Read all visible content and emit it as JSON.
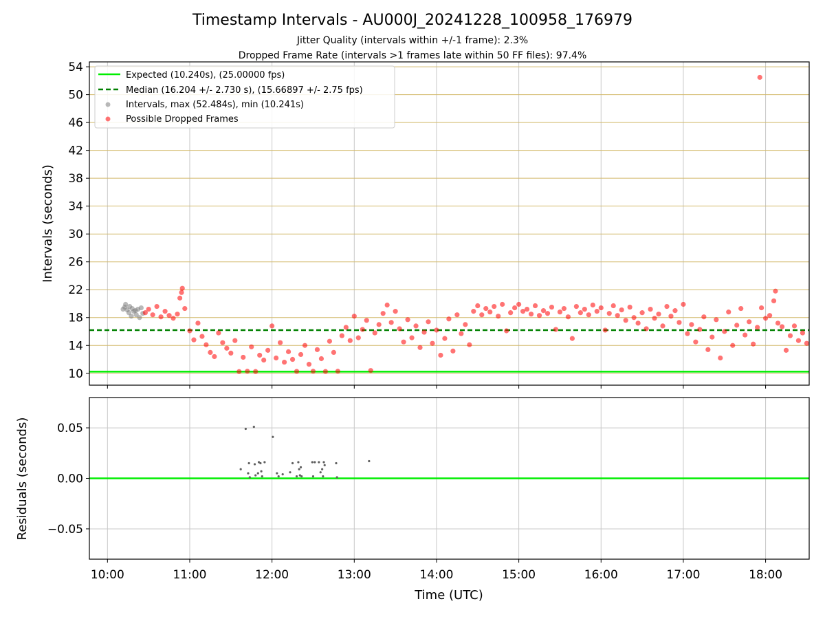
{
  "figure": {
    "title": "Timestamp Intervals - AU000J_20241228_100958_176979",
    "subtitle_line1": "Jitter Quality (intervals within +/-1 frame): 2.3%",
    "subtitle_line2": "Dropped Frame Rate (intervals >1 frames late within 50 FF files): 97.4%"
  },
  "colors": {
    "expected": "#00ee00",
    "median": "#008000",
    "intervals": "#808080",
    "dropped": "#ff0000",
    "hgrid_top": "#d2b96a",
    "grid": "#c8c8c8"
  },
  "chart_data": [
    {
      "type": "scatter",
      "xlabel": "",
      "ylabel": "Intervals (seconds)",
      "x_unit": "hours UTC",
      "xlim": [
        9.78,
        18.53
      ],
      "ylim": [
        8.3,
        54.7
      ],
      "yticks": [
        10,
        14,
        18,
        22,
        26,
        30,
        34,
        38,
        42,
        46,
        50,
        54
      ],
      "grid": "on",
      "legend_position": "upper-left",
      "legend": [
        {
          "label": "Expected (10.240s), (25.00000 fps)",
          "style": "solid-line",
          "color": "#00ee00"
        },
        {
          "label": "Median (16.204 +/- 2.730 s), (15.66897 +/- 2.75 fps)",
          "style": "dashed-line",
          "color": "#008000"
        },
        {
          "label": "Intervals, max (52.484s), min (10.241s)",
          "style": "dot",
          "color": "#808080"
        },
        {
          "label": "Possible Dropped Frames",
          "style": "dot",
          "color": "#ff0000"
        }
      ],
      "reference_lines": {
        "expected": 10.24,
        "median": 16.204
      },
      "series": [
        {
          "name": "Intervals, max (52.484s), min (10.241s)",
          "color": "#808080",
          "points": [
            [
              10.19,
              19.2
            ],
            [
              10.21,
              19.5
            ],
            [
              10.22,
              19.9
            ],
            [
              10.24,
              19.1
            ],
            [
              10.26,
              18.7
            ],
            [
              10.27,
              19.6
            ],
            [
              10.29,
              18.2
            ],
            [
              10.3,
              19.3
            ],
            [
              10.32,
              18.9
            ],
            [
              10.34,
              19.0
            ],
            [
              10.35,
              18.4
            ],
            [
              10.37,
              19.2
            ],
            [
              10.39,
              18.0
            ],
            [
              10.41,
              19.4
            ],
            [
              10.43,
              18.6
            ]
          ]
        },
        {
          "name": "Possible Dropped Frames",
          "color": "#ff0000",
          "points": [
            [
              10.46,
              18.7
            ],
            [
              10.5,
              19.2
            ],
            [
              10.55,
              18.4
            ],
            [
              10.6,
              19.6
            ],
            [
              10.65,
              18.1
            ],
            [
              10.7,
              18.9
            ],
            [
              10.75,
              18.3
            ],
            [
              10.8,
              17.9
            ],
            [
              10.85,
              18.5
            ],
            [
              10.88,
              20.8
            ],
            [
              10.9,
              21.6
            ],
            [
              10.91,
              22.2
            ],
            [
              10.94,
              19.3
            ],
            [
              11.0,
              16.1
            ],
            [
              11.05,
              14.8
            ],
            [
              11.1,
              17.2
            ],
            [
              11.15,
              15.3
            ],
            [
              11.2,
              14.1
            ],
            [
              11.25,
              13.0
            ],
            [
              11.3,
              12.4
            ],
            [
              11.35,
              15.8
            ],
            [
              11.4,
              14.4
            ],
            [
              11.45,
              13.6
            ],
            [
              11.5,
              12.9
            ],
            [
              11.55,
              14.7
            ],
            [
              11.6,
              10.25
            ],
            [
              11.65,
              12.3
            ],
            [
              11.7,
              10.3
            ],
            [
              11.75,
              13.8
            ],
            [
              11.8,
              10.26
            ],
            [
              11.85,
              12.6
            ],
            [
              11.9,
              11.9
            ],
            [
              11.95,
              13.3
            ],
            [
              12.0,
              16.8
            ],
            [
              12.05,
              12.2
            ],
            [
              12.1,
              14.4
            ],
            [
              12.15,
              11.6
            ],
            [
              12.2,
              13.1
            ],
            [
              12.25,
              12.0
            ],
            [
              12.3,
              10.28
            ],
            [
              12.35,
              12.7
            ],
            [
              12.4,
              14.0
            ],
            [
              12.45,
              11.3
            ],
            [
              12.5,
              10.3
            ],
            [
              12.55,
              13.4
            ],
            [
              12.6,
              12.1
            ],
            [
              12.65,
              10.27
            ],
            [
              12.7,
              14.6
            ],
            [
              12.75,
              13.0
            ],
            [
              12.8,
              10.3
            ],
            [
              12.85,
              15.4
            ],
            [
              12.9,
              16.6
            ],
            [
              12.95,
              14.7
            ],
            [
              13.0,
              18.2
            ],
            [
              13.05,
              15.1
            ],
            [
              13.1,
              16.3
            ],
            [
              13.15,
              17.6
            ],
            [
              13.2,
              10.4
            ],
            [
              13.25,
              15.8
            ],
            [
              13.3,
              17.0
            ],
            [
              13.35,
              18.6
            ],
            [
              13.4,
              19.8
            ],
            [
              13.45,
              17.3
            ],
            [
              13.5,
              18.9
            ],
            [
              13.55,
              16.4
            ],
            [
              13.6,
              14.5
            ],
            [
              13.65,
              17.7
            ],
            [
              13.7,
              15.1
            ],
            [
              13.75,
              16.8
            ],
            [
              13.8,
              13.7
            ],
            [
              13.85,
              15.9
            ],
            [
              13.9,
              17.4
            ],
            [
              13.95,
              14.3
            ],
            [
              14.0,
              16.2
            ],
            [
              14.05,
              12.6
            ],
            [
              14.1,
              15.0
            ],
            [
              14.15,
              17.8
            ],
            [
              14.2,
              13.2
            ],
            [
              14.25,
              18.4
            ],
            [
              14.3,
              15.7
            ],
            [
              14.35,
              17.0
            ],
            [
              14.4,
              14.1
            ],
            [
              14.45,
              18.9
            ],
            [
              14.5,
              19.7
            ],
            [
              14.55,
              18.4
            ],
            [
              14.6,
              19.3
            ],
            [
              14.65,
              18.8
            ],
            [
              14.7,
              19.6
            ],
            [
              14.75,
              18.2
            ],
            [
              14.8,
              19.9
            ],
            [
              14.85,
              16.1
            ],
            [
              14.9,
              18.7
            ],
            [
              14.95,
              19.4
            ],
            [
              15.0,
              19.9
            ],
            [
              15.05,
              18.9
            ],
            [
              15.1,
              19.2
            ],
            [
              15.15,
              18.5
            ],
            [
              15.2,
              19.7
            ],
            [
              15.25,
              18.3
            ],
            [
              15.3,
              19.0
            ],
            [
              15.35,
              18.6
            ],
            [
              15.4,
              19.5
            ],
            [
              15.45,
              16.3
            ],
            [
              15.5,
              18.8
            ],
            [
              15.55,
              19.3
            ],
            [
              15.6,
              18.1
            ],
            [
              15.65,
              15.0
            ],
            [
              15.7,
              19.6
            ],
            [
              15.75,
              18.7
            ],
            [
              15.8,
              19.2
            ],
            [
              15.85,
              18.4
            ],
            [
              15.9,
              19.8
            ],
            [
              15.95,
              18.9
            ],
            [
              16.0,
              19.4
            ],
            [
              16.05,
              16.2
            ],
            [
              16.1,
              18.6
            ],
            [
              16.15,
              19.7
            ],
            [
              16.2,
              18.3
            ],
            [
              16.25,
              19.1
            ],
            [
              16.3,
              17.6
            ],
            [
              16.35,
              19.5
            ],
            [
              16.4,
              18.0
            ],
            [
              16.45,
              17.2
            ],
            [
              16.5,
              18.7
            ],
            [
              16.55,
              16.4
            ],
            [
              16.6,
              19.2
            ],
            [
              16.65,
              17.9
            ],
            [
              16.7,
              18.5
            ],
            [
              16.75,
              16.8
            ],
            [
              16.8,
              19.6
            ],
            [
              16.85,
              18.2
            ],
            [
              16.9,
              19.0
            ],
            [
              16.95,
              17.3
            ],
            [
              17.0,
              19.9
            ],
            [
              17.05,
              15.7
            ],
            [
              17.1,
              17.0
            ],
            [
              17.15,
              14.5
            ],
            [
              17.2,
              16.3
            ],
            [
              17.25,
              18.1
            ],
            [
              17.3,
              13.4
            ],
            [
              17.35,
              15.2
            ],
            [
              17.4,
              17.7
            ],
            [
              17.45,
              12.2
            ],
            [
              17.5,
              16.0
            ],
            [
              17.55,
              18.8
            ],
            [
              17.6,
              14.0
            ],
            [
              17.65,
              16.9
            ],
            [
              17.7,
              19.3
            ],
            [
              17.75,
              15.5
            ],
            [
              17.8,
              17.4
            ],
            [
              17.85,
              14.2
            ],
            [
              17.9,
              16.6
            ],
            [
              17.93,
              52.484
            ],
            [
              17.95,
              19.4
            ],
            [
              18.0,
              17.9
            ],
            [
              18.05,
              18.3
            ],
            [
              18.1,
              20.4
            ],
            [
              18.12,
              21.8
            ],
            [
              18.15,
              17.2
            ],
            [
              18.2,
              16.7
            ],
            [
              18.25,
              13.3
            ],
            [
              18.3,
              15.4
            ],
            [
              18.35,
              16.8
            ],
            [
              18.4,
              14.7
            ],
            [
              18.45,
              15.8
            ],
            [
              18.5,
              14.3
            ]
          ]
        }
      ]
    },
    {
      "type": "scatter",
      "xlabel": "Time (UTC)",
      "ylabel": "Residuals (seconds)",
      "x_unit": "hours UTC",
      "xlim": [
        9.78,
        18.53
      ],
      "ylim": [
        -0.08,
        0.08
      ],
      "yticks": [
        -0.05,
        0.0,
        0.05
      ],
      "ytick_labels": [
        "−0.05",
        "0.00",
        "0.05"
      ],
      "xticks": [
        10,
        11,
        12,
        13,
        14,
        15,
        16,
        17,
        18
      ],
      "xtick_labels": [
        "10:00",
        "11:00",
        "12:00",
        "13:00",
        "14:00",
        "15:00",
        "16:00",
        "17:00",
        "18:00"
      ],
      "grid": "on",
      "reference_lines": {
        "zero": 0.0
      },
      "series": [
        {
          "name": "Residuals",
          "color": "#606060",
          "points": [
            [
              11.62,
              0.009
            ],
            [
              11.68,
              0.049
            ],
            [
              11.71,
              0.005
            ],
            [
              11.72,
              0.015
            ],
            [
              11.73,
              0.001
            ],
            [
              11.78,
              0.051
            ],
            [
              11.79,
              0.014
            ],
            [
              11.8,
              0.003
            ],
            [
              11.83,
              0.005
            ],
            [
              11.84,
              0.016
            ],
            [
              11.86,
              0.015
            ],
            [
              11.87,
              0.007
            ],
            [
              11.88,
              0.002
            ],
            [
              11.91,
              0.016
            ],
            [
              12.01,
              0.041
            ],
            [
              12.06,
              0.005
            ],
            [
              12.08,
              0.002
            ],
            [
              12.13,
              0.004
            ],
            [
              12.22,
              0.006
            ],
            [
              12.25,
              0.015
            ],
            [
              12.3,
              0.002
            ],
            [
              12.32,
              0.016
            ],
            [
              12.33,
              0.009
            ],
            [
              12.34,
              0.003
            ],
            [
              12.35,
              0.011
            ],
            [
              12.36,
              0.002
            ],
            [
              12.49,
              0.016
            ],
            [
              12.5,
              0.002
            ],
            [
              12.52,
              0.016
            ],
            [
              12.57,
              0.016
            ],
            [
              12.59,
              0.006
            ],
            [
              12.61,
              0.009
            ],
            [
              12.62,
              0.002
            ],
            [
              12.63,
              0.016
            ],
            [
              12.64,
              0.013
            ],
            [
              12.78,
              0.015
            ],
            [
              12.79,
              0.001
            ],
            [
              13.18,
              0.017
            ]
          ]
        }
      ]
    }
  ]
}
